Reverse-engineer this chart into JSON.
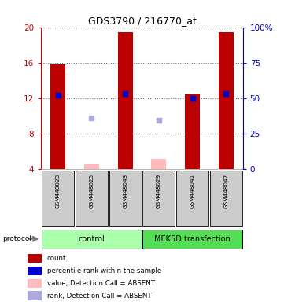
{
  "title": "GDS3790 / 216770_at",
  "samples": [
    "GSM448023",
    "GSM448025",
    "GSM448043",
    "GSM448029",
    "GSM448041",
    "GSM448047"
  ],
  "ylim_left": [
    4,
    20
  ],
  "ylim_right": [
    0,
    100
  ],
  "yticks_left": [
    4,
    8,
    12,
    16,
    20
  ],
  "yticks_right": [
    0,
    25,
    50,
    75,
    100
  ],
  "red_bars_present": {
    "GSM448023": 15.8,
    "GSM448043": 19.4,
    "GSM448041": 12.4,
    "GSM448047": 19.4
  },
  "red_bars_absent": {
    "GSM448025": 4.6,
    "GSM448029": 5.2
  },
  "blue_sq_present": {
    "GSM448023": 12.3,
    "GSM448043": 12.5,
    "GSM448041": 12.0,
    "GSM448047": 12.5
  },
  "blue_sq_absent": {
    "GSM448025": 9.8,
    "GSM448029": 9.5
  },
  "red_color": "#bb0000",
  "red_absent_color": "#ffbbbb",
  "blue_color": "#0000cc",
  "blue_absent_color": "#aaaadd",
  "bar_width": 0.45,
  "square_size": 25,
  "left_axis_color": "#cc0000",
  "right_axis_color": "#0000cc",
  "bg_color": "#ffffff",
  "grid_color": "#666666",
  "sample_bg": "#cccccc",
  "group_bg_control": "#aaffaa",
  "group_bg_mek": "#55dd55",
  "legend_items": [
    {
      "color": "#bb0000",
      "label": "count"
    },
    {
      "color": "#0000cc",
      "label": "percentile rank within the sample"
    },
    {
      "color": "#ffbbbb",
      "label": "value, Detection Call = ABSENT"
    },
    {
      "color": "#aaaadd",
      "label": "rank, Detection Call = ABSENT"
    }
  ],
  "figsize": [
    3.61,
    3.84
  ],
  "dpi": 100
}
